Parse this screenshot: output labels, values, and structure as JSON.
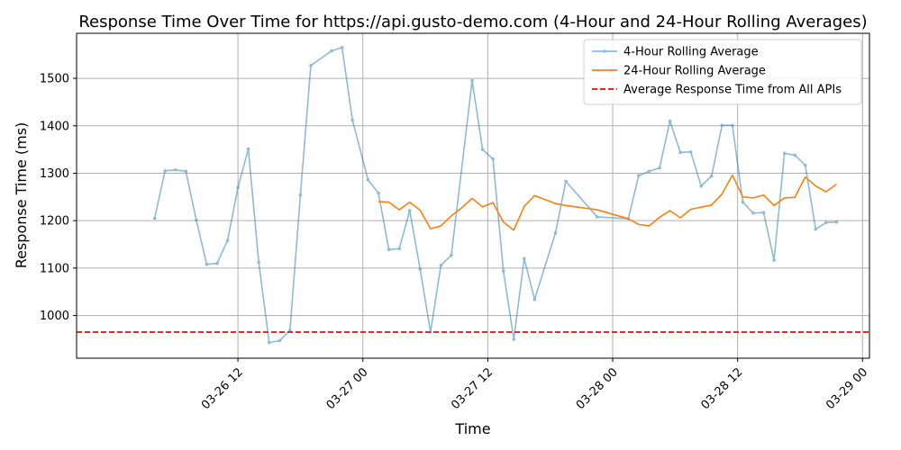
{
  "chart_data": {
    "type": "line",
    "title": "Response Time Over Time for https://api.gusto-demo.com (4-Hour and 24-Hour Rolling Averages)",
    "xlabel": "Time",
    "ylabel": "Response Time (ms)",
    "x_ticks": [
      {
        "value": "2024-03-26 12:00",
        "label": "03-26 12"
      },
      {
        "value": "2024-03-27 00:00",
        "label": "03-27 00"
      },
      {
        "value": "2024-03-27 12:00",
        "label": "03-27 12"
      },
      {
        "value": "2024-03-28 00:00",
        "label": "03-28 00"
      },
      {
        "value": "2024-03-28 12:00",
        "label": "03-28 12"
      },
      {
        "value": "2024-03-29 00:00",
        "label": "03-29 00"
      }
    ],
    "y_ticks": [
      1000,
      1100,
      1200,
      1300,
      1400,
      1500
    ],
    "xlim": [
      "2024-03-25 20:30",
      "2024-03-29 00:40"
    ],
    "ylim": [
      910,
      1595
    ],
    "grid": true,
    "legend_position": "upper-right",
    "series": [
      {
        "name": "4-Hour Rolling Average",
        "style": "line-with-markers",
        "color": "#1f77b4",
        "opacity": 0.5,
        "points": [
          [
            "2024-03-26 04:00",
            1205
          ],
          [
            "2024-03-26 05:00",
            1305
          ],
          [
            "2024-03-26 06:00",
            1307
          ],
          [
            "2024-03-26 07:00",
            1304
          ],
          [
            "2024-03-26 08:00",
            1201
          ],
          [
            "2024-03-26 09:00",
            1108
          ],
          [
            "2024-03-26 10:00",
            1110
          ],
          [
            "2024-03-26 11:00",
            1158
          ],
          [
            "2024-03-26 12:00",
            1270
          ],
          [
            "2024-03-26 13:00",
            1351
          ],
          [
            "2024-03-26 14:00",
            1112
          ],
          [
            "2024-03-26 15:00",
            943
          ],
          [
            "2024-03-26 16:00",
            947
          ],
          [
            "2024-03-26 17:00",
            969
          ],
          [
            "2024-03-26 18:00",
            1254
          ],
          [
            "2024-03-26 19:00",
            1527
          ],
          [
            "2024-03-26 21:00",
            1558
          ],
          [
            "2024-03-26 22:00",
            1565
          ],
          [
            "2024-03-26 23:00",
            1412
          ],
          [
            "2024-03-27 00:30",
            1286
          ],
          [
            "2024-03-27 01:30",
            1258
          ],
          [
            "2024-03-27 02:30",
            1139
          ],
          [
            "2024-03-27 03:30",
            1141
          ],
          [
            "2024-03-27 04:30",
            1221
          ],
          [
            "2024-03-27 05:30",
            1098
          ],
          [
            "2024-03-27 06:30",
            965
          ],
          [
            "2024-03-27 07:30",
            1106
          ],
          [
            "2024-03-27 08:30",
            1127
          ],
          [
            "2024-03-27 10:30",
            1495
          ],
          [
            "2024-03-27 11:30",
            1350
          ],
          [
            "2024-03-27 12:30",
            1330
          ],
          [
            "2024-03-27 13:30",
            1094
          ],
          [
            "2024-03-27 14:30",
            950
          ],
          [
            "2024-03-27 15:30",
            1120
          ],
          [
            "2024-03-27 16:30",
            1034
          ],
          [
            "2024-03-27 18:30",
            1174
          ],
          [
            "2024-03-27 19:30",
            1283
          ],
          [
            "2024-03-27 22:30",
            1208
          ],
          [
            "2024-03-28 01:30",
            1204
          ],
          [
            "2024-03-28 02:30",
            1295
          ],
          [
            "2024-03-28 03:30",
            1304
          ],
          [
            "2024-03-28 04:30",
            1311
          ],
          [
            "2024-03-28 05:30",
            1410
          ],
          [
            "2024-03-28 06:30",
            1344
          ],
          [
            "2024-03-28 07:30",
            1345
          ],
          [
            "2024-03-28 08:30",
            1273
          ],
          [
            "2024-03-28 09:30",
            1294
          ],
          [
            "2024-03-28 10:30",
            1401
          ],
          [
            "2024-03-28 11:30",
            1401
          ],
          [
            "2024-03-28 12:30",
            1239
          ],
          [
            "2024-03-28 13:30",
            1216
          ],
          [
            "2024-03-28 14:30",
            1217
          ],
          [
            "2024-03-28 15:30",
            1117
          ],
          [
            "2024-03-28 16:30",
            1342
          ],
          [
            "2024-03-28 17:30",
            1338
          ],
          [
            "2024-03-28 18:30",
            1317
          ],
          [
            "2024-03-28 19:30",
            1182
          ],
          [
            "2024-03-28 20:30",
            1196
          ],
          [
            "2024-03-28 21:30",
            1197
          ]
        ]
      },
      {
        "name": "24-Hour Rolling Average",
        "style": "line",
        "color": "#ff7f0e",
        "opacity": 1,
        "points": [
          [
            "2024-03-27 01:30",
            1240
          ],
          [
            "2024-03-27 02:30",
            1239
          ],
          [
            "2024-03-27 03:30",
            1223
          ],
          [
            "2024-03-27 04:30",
            1239
          ],
          [
            "2024-03-27 05:30",
            1222
          ],
          [
            "2024-03-27 06:30",
            1183
          ],
          [
            "2024-03-27 07:30",
            1189
          ],
          [
            "2024-03-27 08:30",
            1210
          ],
          [
            "2024-03-27 09:30",
            1227
          ],
          [
            "2024-03-27 10:30",
            1247
          ],
          [
            "2024-03-27 11:30",
            1229
          ],
          [
            "2024-03-27 12:30",
            1238
          ],
          [
            "2024-03-27 13:30",
            1197
          ],
          [
            "2024-03-27 14:30",
            1180
          ],
          [
            "2024-03-27 15:30",
            1230
          ],
          [
            "2024-03-27 16:30",
            1253
          ],
          [
            "2024-03-27 18:30",
            1236
          ],
          [
            "2024-03-27 19:30",
            1232
          ],
          [
            "2024-03-27 22:30",
            1223
          ],
          [
            "2024-03-28 01:30",
            1204
          ],
          [
            "2024-03-28 02:30",
            1192
          ],
          [
            "2024-03-28 03:30",
            1189
          ],
          [
            "2024-03-28 04:30",
            1207
          ],
          [
            "2024-03-28 05:30",
            1221
          ],
          [
            "2024-03-28 06:30",
            1206
          ],
          [
            "2024-03-28 07:30",
            1224
          ],
          [
            "2024-03-28 09:30",
            1233
          ],
          [
            "2024-03-28 10:30",
            1256
          ],
          [
            "2024-03-28 11:30",
            1296
          ],
          [
            "2024-03-28 12:30",
            1250
          ],
          [
            "2024-03-28 13:30",
            1248
          ],
          [
            "2024-03-28 14:30",
            1254
          ],
          [
            "2024-03-28 15:30",
            1232
          ],
          [
            "2024-03-28 16:30",
            1248
          ],
          [
            "2024-03-28 17:30",
            1249
          ],
          [
            "2024-03-28 18:30",
            1292
          ],
          [
            "2024-03-28 19:30",
            1273
          ],
          [
            "2024-03-28 20:30",
            1261
          ],
          [
            "2024-03-28 21:30",
            1277
          ]
        ]
      }
    ],
    "reference_lines": [
      {
        "name": "Average Response Time from All APIs",
        "y": 965,
        "color": "#ff0000",
        "style": "dashed"
      }
    ]
  }
}
